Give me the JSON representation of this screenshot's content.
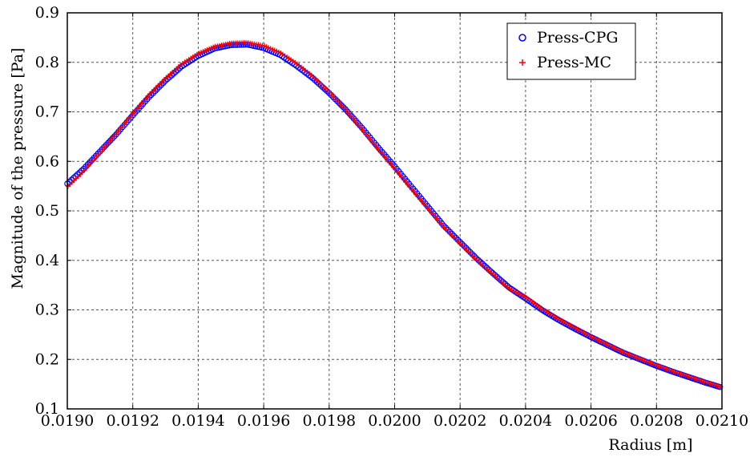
{
  "chart_data": {
    "type": "scatter",
    "title": "",
    "xlabel": "Radius [m]",
    "ylabel": "Magnitude of the pressure [Pa]",
    "xlim": [
      0.019,
      0.021
    ],
    "ylim": [
      0.1,
      0.9
    ],
    "xticks": [
      "0.0190",
      "0.0192",
      "0.0194",
      "0.0196",
      "0.0198",
      "0.0200",
      "0.0202",
      "0.0204",
      "0.0206",
      "0.0208",
      "0.0210"
    ],
    "yticks": [
      "0.1",
      "0.2",
      "0.3",
      "0.4",
      "0.5",
      "0.6",
      "0.7",
      "0.8",
      "0.9"
    ],
    "grid": true,
    "legend_position": "top-right",
    "series": [
      {
        "name": "Press-CPG",
        "marker": "circle",
        "color": "#0000ff",
        "x": [
          0.019,
          0.01905,
          0.0191,
          0.01915,
          0.0192,
          0.01925,
          0.0193,
          0.01935,
          0.0194,
          0.01945,
          0.0195,
          0.01955,
          0.0196,
          0.01965,
          0.0197,
          0.01975,
          0.0198,
          0.01985,
          0.0199,
          0.01995,
          0.02,
          0.02005,
          0.0201,
          0.02015,
          0.0202,
          0.02025,
          0.0203,
          0.02035,
          0.0204,
          0.02045,
          0.0205,
          0.02055,
          0.0206,
          0.02065,
          0.0207,
          0.02075,
          0.0208,
          0.02085,
          0.0209,
          0.02095,
          0.021
        ],
        "y": [
          0.555,
          0.585,
          0.62,
          0.655,
          0.693,
          0.73,
          0.763,
          0.792,
          0.813,
          0.828,
          0.835,
          0.836,
          0.829,
          0.815,
          0.793,
          0.768,
          0.738,
          0.705,
          0.668,
          0.628,
          0.59,
          0.55,
          0.51,
          0.47,
          0.437,
          0.404,
          0.374,
          0.345,
          0.323,
          0.3,
          0.28,
          0.262,
          0.245,
          0.229,
          0.213,
          0.2,
          0.187,
          0.175,
          0.164,
          0.153,
          0.143
        ]
      },
      {
        "name": "Press-MC",
        "marker": "plus",
        "color": "#ff0000",
        "x": [
          0.019,
          0.01905,
          0.0191,
          0.01915,
          0.0192,
          0.01925,
          0.0193,
          0.01935,
          0.0194,
          0.01945,
          0.0195,
          0.01955,
          0.0196,
          0.01965,
          0.0197,
          0.01975,
          0.0198,
          0.01985,
          0.0199,
          0.01995,
          0.02,
          0.02005,
          0.0201,
          0.02015,
          0.0202,
          0.02025,
          0.0203,
          0.02035,
          0.0204,
          0.02045,
          0.0205,
          0.02055,
          0.0206,
          0.02065,
          0.0207,
          0.02075,
          0.0208,
          0.02085,
          0.0209,
          0.02095,
          0.021
        ],
        "y": [
          0.548,
          0.58,
          0.618,
          0.657,
          0.697,
          0.735,
          0.768,
          0.797,
          0.818,
          0.832,
          0.839,
          0.84,
          0.834,
          0.82,
          0.798,
          0.772,
          0.74,
          0.704,
          0.665,
          0.624,
          0.585,
          0.545,
          0.506,
          0.467,
          0.434,
          0.401,
          0.372,
          0.343,
          0.326,
          0.302,
          0.282,
          0.264,
          0.246,
          0.23,
          0.214,
          0.201,
          0.188,
          0.176,
          0.165,
          0.154,
          0.144
        ]
      }
    ]
  }
}
